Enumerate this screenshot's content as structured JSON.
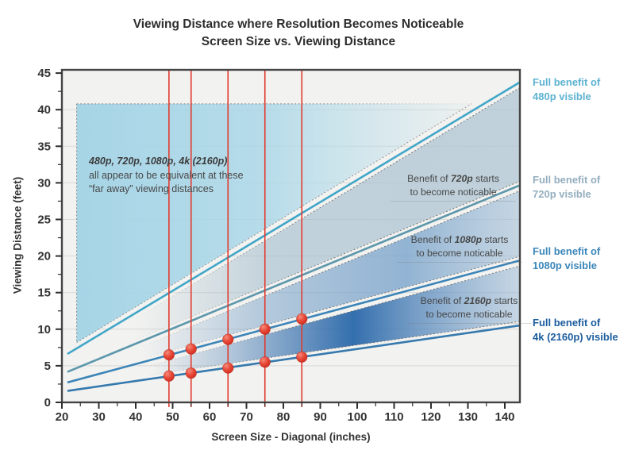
{
  "title": {
    "line1": "Viewing Distance where Resolution Becomes Noticeable",
    "line2": "Screen Size vs. Viewing Distance"
  },
  "chart_data": {
    "type": "line",
    "title": "Viewing Distance where Resolution Becomes Noticeable — Screen Size vs. Viewing Distance",
    "xlabel": "Screen Size - Diagonal (inches)",
    "ylabel": "Viewing Distance (feet)",
    "xlim": [
      20,
      144.2
    ],
    "ylim": [
      0,
      45.4
    ],
    "x_ticks": [
      20,
      30,
      40,
      50,
      60,
      70,
      80,
      90,
      100,
      110,
      120,
      130,
      140
    ],
    "y_ticks": [
      0,
      5,
      10,
      15,
      20,
      25,
      30,
      35,
      40,
      45
    ],
    "grid": "horizontal",
    "legend_position": "right-margin",
    "series": [
      {
        "resolution": "480p",
        "name": "Full benefit of 480p visible",
        "slope": 0.303,
        "intercept": 0.1,
        "x_start": 21.5,
        "color": "#41a6c8",
        "label_color": "#5cb2d1",
        "points": [
          [
            22,
            6.8
          ],
          [
            144,
            43.7
          ]
        ]
      },
      {
        "resolution": "720p",
        "name": "Full benefit of 720p visible",
        "slope": 0.208,
        "intercept": -0.3,
        "x_start": 21.5,
        "color": "#5d97ac",
        "label_color": "#94aebe",
        "points": [
          [
            22,
            4.3
          ],
          [
            144,
            29.7
          ]
        ]
      },
      {
        "resolution": "1080p",
        "name": "Full benefit of 1080p visible",
        "slope": 0.136,
        "intercept": -0.2,
        "x_start": 21.5,
        "color": "#3b84b8",
        "label_color": "#3b87ba",
        "points": [
          [
            22,
            2.8
          ],
          [
            144,
            19.4
          ]
        ]
      },
      {
        "resolution": "4k",
        "name": "Full benefit of 4k (2160p) visible",
        "slope": 0.073,
        "intercept": 0.0,
        "x_start": 21.5,
        "color": "#3579ae",
        "label_color": "#1a5c9e",
        "points": [
          [
            22,
            1.6
          ],
          [
            144,
            10.5
          ]
        ]
      }
    ],
    "tv_sizes_inches": [
      49,
      55,
      65,
      75,
      85
    ],
    "tv_size_line_color": "#e23b2e",
    "markers": [
      {
        "x": 49,
        "y": 6.5,
        "on": "1080p"
      },
      {
        "x": 55,
        "y": 7.3,
        "on": "1080p"
      },
      {
        "x": 65,
        "y": 8.6,
        "on": "1080p"
      },
      {
        "x": 75,
        "y": 10.0,
        "on": "1080p"
      },
      {
        "x": 85,
        "y": 11.4,
        "on": "1080p"
      },
      {
        "x": 49,
        "y": 3.6,
        "on": "4k"
      },
      {
        "x": 55,
        "y": 4.0,
        "on": "4k"
      },
      {
        "x": 65,
        "y": 4.7,
        "on": "4k"
      },
      {
        "x": 75,
        "y": 5.5,
        "on": "4k"
      },
      {
        "x": 85,
        "y": 6.2,
        "on": "4k"
      }
    ],
    "far_away_region": {
      "top_ft": 40.8,
      "left_inches": 24,
      "tip_inches": 131,
      "fill": "#a4d4e6"
    },
    "bands": [
      {
        "benefit_of": "720p",
        "start_inches": 40,
        "between": [
          "480p",
          "720p"
        ],
        "gradient": "g720"
      },
      {
        "benefit_of": "1080p",
        "start_inches": 42,
        "between": [
          "720p",
          "1080p"
        ],
        "gradient": "g1080"
      },
      {
        "benefit_of": "2160p",
        "start_inches": 44,
        "between": [
          "1080p",
          "4k"
        ],
        "gradient": "g2160"
      }
    ]
  },
  "annotations": {
    "far_away": {
      "line1": "480p, 720p, 1080p, 4k (2160p)",
      "line2": "all appear to be equivalent at these",
      "line3": "“far away” viewing distances"
    },
    "benefit_720": {
      "prefix": "Benefit of ",
      "em": "720p",
      "suffix": " starts",
      "line2": "to become noticable"
    },
    "benefit_1080": {
      "prefix": "Benefit of ",
      "em": "1080p",
      "suffix": " starts",
      "line2": "to become noticable"
    },
    "benefit_2160": {
      "prefix": "Benefit of ",
      "em": "2160p",
      "suffix": " starts",
      "line2": "to become noticable"
    }
  },
  "right_labels": [
    {
      "line1": "Full benefit of",
      "line2": "480p visible",
      "color": "#5cb2d1"
    },
    {
      "line1": "Full benefit of",
      "line2": "720p visible",
      "color": "#94aebe"
    },
    {
      "line1": "Full benefit of",
      "line2": "1080p visible",
      "color": "#3b87ba"
    },
    {
      "line1": "Full benefit of",
      "line2": "4k (2160p) visible",
      "color": "#1a5c9e"
    }
  ],
  "axis_titles": {
    "x": "Screen Size - Diagonal (inches)",
    "y": "Viewing Distance (feet)"
  }
}
